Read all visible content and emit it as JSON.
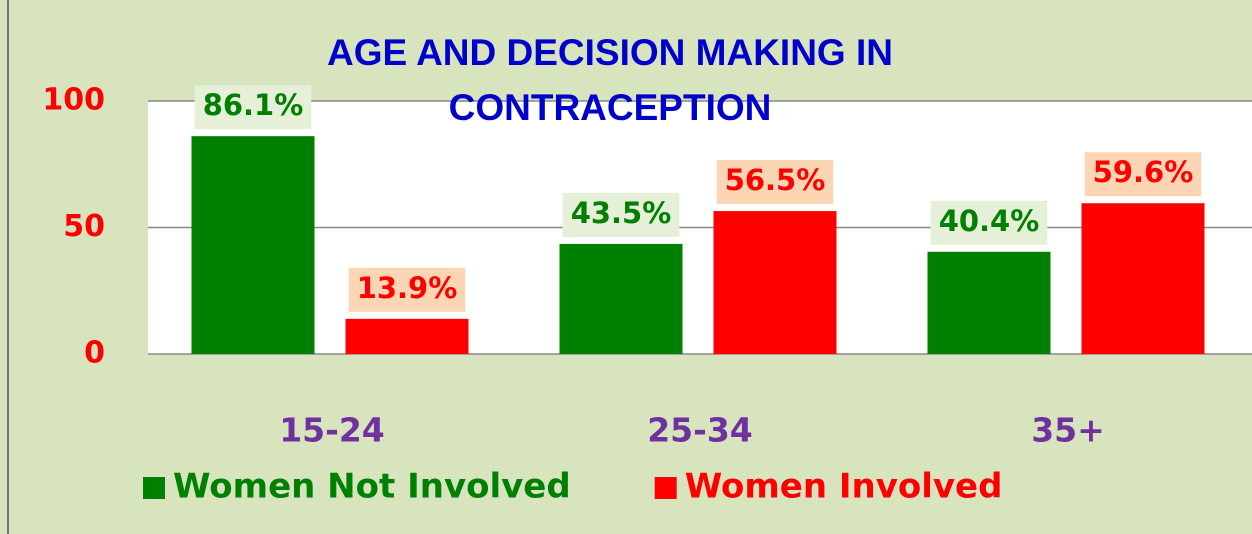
{
  "chart_data": {
    "type": "bar",
    "title": [
      "AGE AND DECISION MAKING  IN",
      "CONTRACEPTION"
    ],
    "categories": [
      "15-24",
      "25-34",
      "35+"
    ],
    "series": [
      {
        "name": "Women Not Involved",
        "color": "#008000",
        "label_background": "#e6efd8",
        "values": [
          86.1,
          43.5,
          40.4
        ],
        "value_labels": [
          "86.1%",
          "43.5%",
          "40.4%"
        ]
      },
      {
        "name": "Women Involved",
        "color": "#ff0000",
        "label_background": "#fcd5b5",
        "values": [
          13.9,
          56.5,
          59.6
        ],
        "value_labels": [
          "13.9%",
          "56.5%",
          "59.6%"
        ]
      }
    ],
    "ylim": [
      0,
      100
    ],
    "yticks": [
      0,
      50,
      100
    ],
    "grid": true,
    "legend": "bottom"
  }
}
